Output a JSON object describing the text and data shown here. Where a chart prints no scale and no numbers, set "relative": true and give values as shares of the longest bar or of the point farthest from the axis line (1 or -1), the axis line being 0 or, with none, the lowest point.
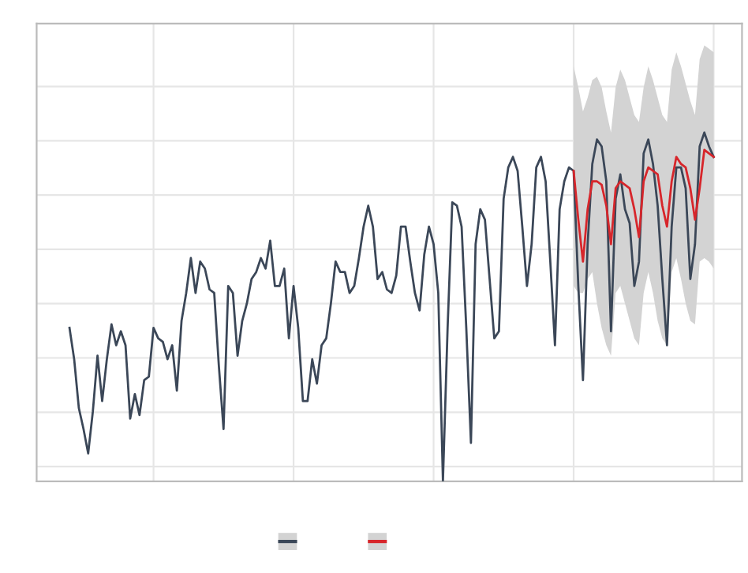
{
  "chart_data": {
    "type": "line",
    "relative": true,
    "grid": true,
    "categories": [
      null,
      null,
      null,
      null,
      null,
      null,
      null,
      null,
      null,
      null,
      null,
      null,
      null,
      null,
      null,
      null,
      null,
      null,
      null,
      null,
      null,
      null,
      null,
      null,
      null,
      null,
      null,
      null,
      null,
      null,
      null,
      null,
      null,
      null,
      null,
      null,
      null,
      null,
      null,
      null,
      null,
      null,
      null,
      null,
      null,
      null,
      null,
      null,
      null,
      null,
      null,
      null,
      null,
      null,
      null,
      null,
      null,
      null,
      null,
      null,
      null,
      null,
      null,
      null,
      null,
      null,
      null,
      null,
      null,
      null,
      null,
      null,
      null,
      null,
      null,
      null,
      null,
      null,
      null,
      null,
      null,
      null,
      null,
      null,
      null,
      null,
      null,
      null,
      null,
      null,
      null,
      null,
      null,
      null,
      null,
      null,
      null,
      null,
      null,
      null,
      null,
      null,
      null,
      null,
      null,
      null,
      null,
      null,
      null,
      null,
      null,
      null,
      null,
      null,
      null,
      null,
      null,
      null,
      null,
      null,
      null,
      null,
      null,
      null,
      null,
      null,
      null,
      null,
      null,
      null,
      null,
      null,
      null,
      null,
      null,
      null,
      null,
      null,
      null
    ],
    "series": [
      {
        "color": "#3b4758",
        "values": [
          0.44,
          0.35,
          0.21,
          0.15,
          0.08,
          0.2,
          0.36,
          0.23,
          0.35,
          0.45,
          0.39,
          0.43,
          0.39,
          0.18,
          0.25,
          0.19,
          0.29,
          0.3,
          0.44,
          0.41,
          0.4,
          0.35,
          0.39,
          0.26,
          0.46,
          0.54,
          0.64,
          0.54,
          0.63,
          0.61,
          0.55,
          0.54,
          0.33,
          0.15,
          0.56,
          0.54,
          0.36,
          0.46,
          0.51,
          0.58,
          0.6,
          0.64,
          0.61,
          0.69,
          0.56,
          0.56,
          0.61,
          0.41,
          0.56,
          0.44,
          0.23,
          0.23,
          0.35,
          0.28,
          0.39,
          0.41,
          0.51,
          0.63,
          0.6,
          0.6,
          0.54,
          0.56,
          0.64,
          0.73,
          0.79,
          0.73,
          0.58,
          0.6,
          0.55,
          0.54,
          0.59,
          0.73,
          0.73,
          0.63,
          0.54,
          0.49,
          0.65,
          0.73,
          0.68,
          0.54,
          0,
          0.44,
          0.8,
          0.79,
          0.73,
          0.44,
          0.11,
          0.68,
          0.78,
          0.75,
          0.58,
          0.41,
          0.43,
          0.81,
          0.9,
          0.93,
          0.89,
          0.73,
          0.56,
          0.68,
          0.9,
          0.93,
          0.86,
          0.63,
          0.39,
          0.78,
          0.86,
          0.9,
          0.89,
          0.56,
          0.29,
          0.68,
          0.91,
          0.98,
          0.96,
          0.86,
          0.43,
          0.81,
          0.88,
          0.78,
          0.74,
          0.56,
          0.63,
          0.94,
          0.98,
          0.91,
          0.79,
          0.58,
          0.39,
          0.73,
          0.9,
          0.9,
          0.84,
          0.58,
          0.68,
          0.96,
          1,
          0.96,
          0.93
        ]
      },
      {
        "color": "#d7262b",
        "values": [
          null,
          null,
          null,
          null,
          null,
          null,
          null,
          null,
          null,
          null,
          null,
          null,
          null,
          null,
          null,
          null,
          null,
          null,
          null,
          null,
          null,
          null,
          null,
          null,
          null,
          null,
          null,
          null,
          null,
          null,
          null,
          null,
          null,
          null,
          null,
          null,
          null,
          null,
          null,
          null,
          null,
          null,
          null,
          null,
          null,
          null,
          null,
          null,
          null,
          null,
          null,
          null,
          null,
          null,
          null,
          null,
          null,
          null,
          null,
          null,
          null,
          null,
          null,
          null,
          null,
          null,
          null,
          null,
          null,
          null,
          null,
          null,
          null,
          null,
          null,
          null,
          null,
          null,
          null,
          null,
          null,
          null,
          null,
          null,
          null,
          null,
          null,
          null,
          null,
          null,
          null,
          null,
          null,
          null,
          null,
          null,
          null,
          null,
          null,
          null,
          null,
          null,
          null,
          null,
          null,
          null,
          null,
          null,
          0.89,
          0.75,
          0.63,
          0.78,
          0.86,
          0.86,
          0.85,
          0.79,
          0.68,
          0.84,
          0.86,
          0.85,
          0.84,
          0.78,
          0.7,
          0.86,
          0.9,
          0.89,
          0.88,
          0.79,
          0.73,
          0.86,
          0.93,
          0.91,
          0.9,
          0.84,
          0.75,
          0.84,
          0.95,
          0.94,
          0.93
        ],
        "upper": [
          null,
          null,
          null,
          null,
          null,
          null,
          null,
          null,
          null,
          null,
          null,
          null,
          null,
          null,
          null,
          null,
          null,
          null,
          null,
          null,
          null,
          null,
          null,
          null,
          null,
          null,
          null,
          null,
          null,
          null,
          null,
          null,
          null,
          null,
          null,
          null,
          null,
          null,
          null,
          null,
          null,
          null,
          null,
          null,
          null,
          null,
          null,
          null,
          null,
          null,
          null,
          null,
          null,
          null,
          null,
          null,
          null,
          null,
          null,
          null,
          null,
          null,
          null,
          null,
          null,
          null,
          null,
          null,
          null,
          null,
          null,
          null,
          null,
          null,
          null,
          null,
          null,
          null,
          null,
          null,
          null,
          null,
          null,
          null,
          null,
          null,
          null,
          null,
          null,
          null,
          null,
          null,
          null,
          null,
          null,
          null,
          null,
          null,
          null,
          null,
          null,
          null,
          null,
          null,
          null,
          null,
          null,
          null,
          1.19,
          1.13,
          1.06,
          1.1,
          1.15,
          1.16,
          1.13,
          1.06,
          1.0,
          1.13,
          1.18,
          1.15,
          1.1,
          1.05,
          1.03,
          1.13,
          1.19,
          1.15,
          1.1,
          1.05,
          1.03,
          1.18,
          1.23,
          1.19,
          1.14,
          1.09,
          1.05,
          1.21,
          1.25,
          1.24,
          1.23
        ],
        "lower": [
          null,
          null,
          null,
          null,
          null,
          null,
          null,
          null,
          null,
          null,
          null,
          null,
          null,
          null,
          null,
          null,
          null,
          null,
          null,
          null,
          null,
          null,
          null,
          null,
          null,
          null,
          null,
          null,
          null,
          null,
          null,
          null,
          null,
          null,
          null,
          null,
          null,
          null,
          null,
          null,
          null,
          null,
          null,
          null,
          null,
          null,
          null,
          null,
          null,
          null,
          null,
          null,
          null,
          null,
          null,
          null,
          null,
          null,
          null,
          null,
          null,
          null,
          null,
          null,
          null,
          null,
          null,
          null,
          null,
          null,
          null,
          null,
          null,
          null,
          null,
          null,
          null,
          null,
          null,
          null,
          null,
          null,
          null,
          null,
          null,
          null,
          null,
          null,
          null,
          null,
          null,
          null,
          null,
          null,
          null,
          null,
          null,
          null,
          null,
          null,
          null,
          null,
          null,
          null,
          null,
          null,
          null,
          null,
          0.56,
          0.54,
          0.54,
          0.58,
          0.6,
          0.51,
          0.44,
          0.39,
          0.36,
          0.54,
          0.56,
          0.51,
          0.46,
          0.41,
          0.39,
          0.54,
          0.6,
          0.54,
          0.46,
          0.41,
          0.39,
          0.6,
          0.64,
          0.58,
          0.51,
          0.46,
          0.45,
          0.63,
          0.64,
          0.63,
          0.61
        ]
      }
    ]
  }
}
